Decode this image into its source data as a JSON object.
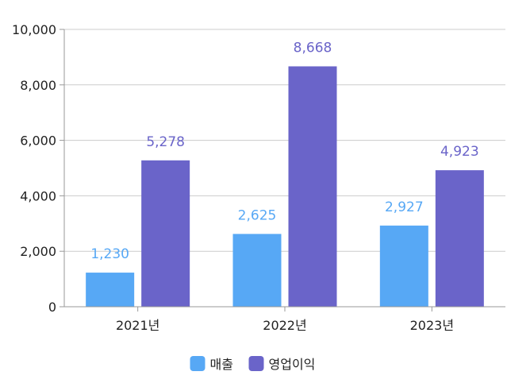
{
  "chart_data": {
    "type": "bar",
    "categories": [
      "2021년",
      "2022년",
      "2023년"
    ],
    "series": [
      {
        "name": "매출",
        "values": [
          1230,
          2625,
          2927
        ],
        "color": "#57a8f5"
      },
      {
        "name": "영업이익",
        "values": [
          5278,
          8668,
          4923
        ],
        "color": "#6a64c9"
      }
    ],
    "data_labels": [
      [
        "1,230",
        "2,625",
        "2,927"
      ],
      [
        "5,278",
        "8,668",
        "4,923"
      ]
    ],
    "ylim": [
      0,
      10000
    ],
    "yticks": [
      0,
      2000,
      4000,
      6000,
      8000,
      10000
    ],
    "ytick_labels": [
      "0",
      "2,000",
      "4,000",
      "6,000",
      "8,000",
      "10,000"
    ],
    "grid": true,
    "legend_position": "bottom"
  }
}
